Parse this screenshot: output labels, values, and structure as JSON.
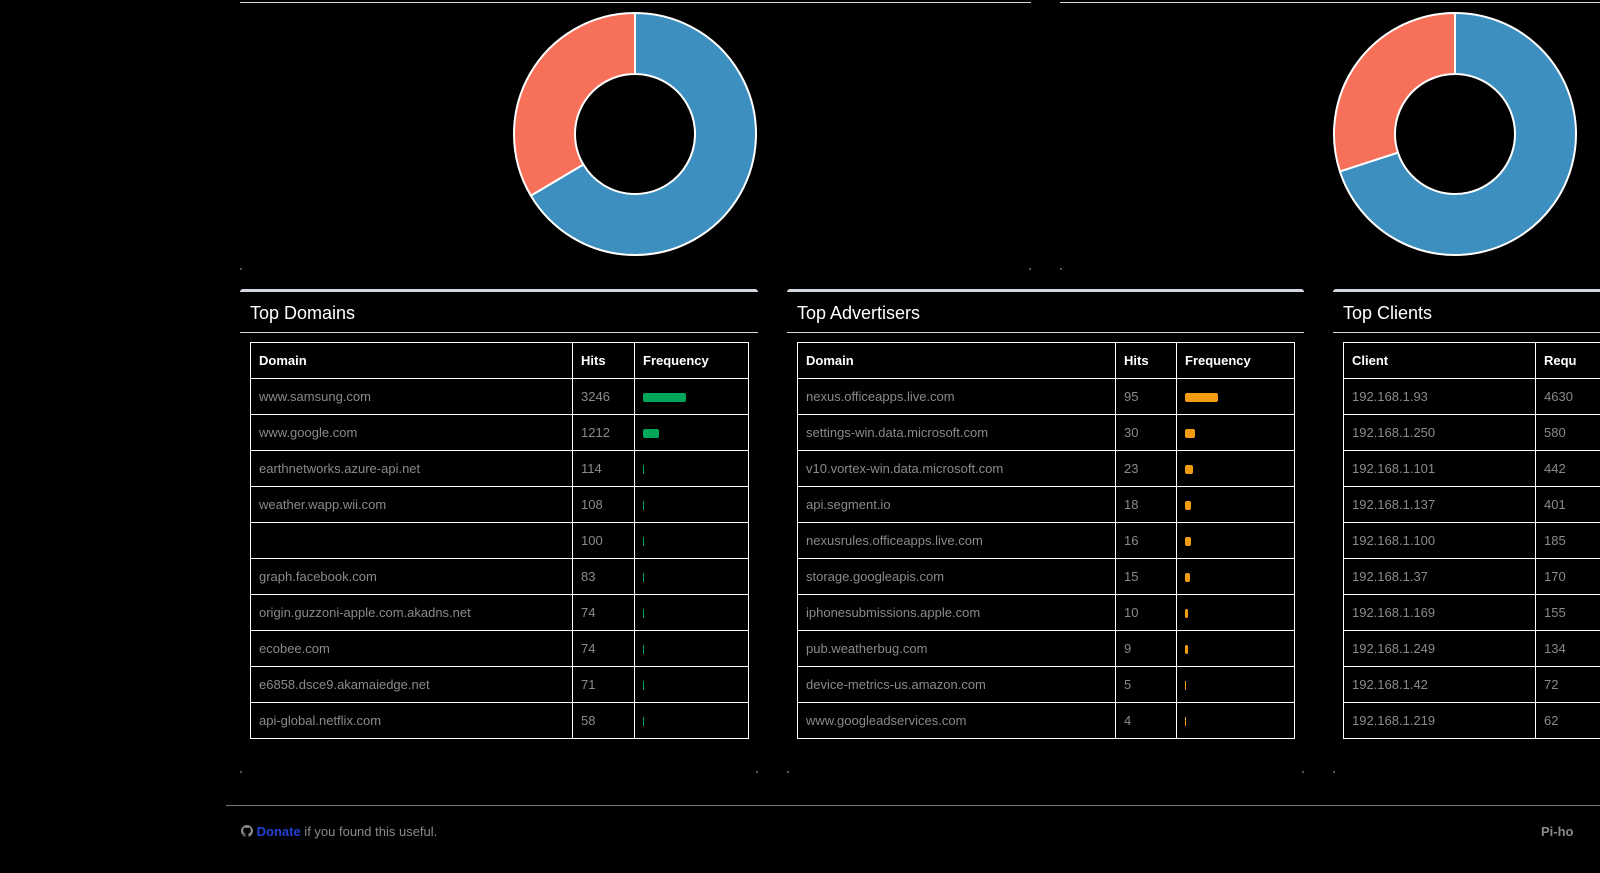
{
  "colors": {
    "pie_blue": "#3d8fbf",
    "pie_red": "#f7705a",
    "domains_bar": "#00a65a",
    "advertisers_bar": "#f39c12",
    "link": "#2441d6"
  },
  "charts": {
    "left_donut": {
      "slices": [
        {
          "value": 0.665,
          "color": "#3d8fbf"
        },
        {
          "value": 0.335,
          "color": "#f7705a"
        }
      ]
    },
    "right_donut": {
      "slices": [
        {
          "value": 0.7,
          "color": "#3d8fbf"
        },
        {
          "value": 0.3,
          "color": "#f7705a"
        }
      ]
    }
  },
  "top_domains": {
    "title": "Top Domains",
    "headers": [
      "Domain",
      "Hits",
      "Frequency"
    ],
    "rows": [
      {
        "domain": "www.samsung.com",
        "hits": "3246",
        "freq": 0.38
      },
      {
        "domain": "www.google.com",
        "hits": "1212",
        "freq": 0.14
      },
      {
        "domain": "earthnetworks.azure-api.net",
        "hits": "114",
        "freq": 0.013
      },
      {
        "domain": "weather.wapp.wii.com",
        "hits": "108",
        "freq": 0.012
      },
      {
        "domain": "",
        "hits": "100",
        "freq": 0.012
      },
      {
        "domain": "graph.facebook.com",
        "hits": "83",
        "freq": 0.01
      },
      {
        "domain": "origin.guzzoni-apple.com.akadns.net",
        "hits": "74",
        "freq": 0.009
      },
      {
        "domain": "ecobee.com",
        "hits": "74",
        "freq": 0.009
      },
      {
        "domain": "e6858.dsce9.akamaiedge.net",
        "hits": "71",
        "freq": 0.008
      },
      {
        "domain": "api-global.netflix.com",
        "hits": "58",
        "freq": 0.007
      }
    ]
  },
  "top_advertisers": {
    "title": "Top Advertisers",
    "headers": [
      "Domain",
      "Hits",
      "Frequency"
    ],
    "rows": [
      {
        "domain": "nexus.officeapps.live.com",
        "hits": "95",
        "freq": 0.29
      },
      {
        "domain": "settings-win.data.microsoft.com",
        "hits": "30",
        "freq": 0.09
      },
      {
        "domain": "v10.vortex-win.data.microsoft.com",
        "hits": "23",
        "freq": 0.07
      },
      {
        "domain": "api.segment.io",
        "hits": "18",
        "freq": 0.055
      },
      {
        "domain": "nexusrules.officeapps.live.com",
        "hits": "16",
        "freq": 0.049
      },
      {
        "domain": "storage.googleapis.com",
        "hits": "15",
        "freq": 0.046
      },
      {
        "domain": "iphonesubmissions.apple.com",
        "hits": "10",
        "freq": 0.03
      },
      {
        "domain": "pub.weatherbug.com",
        "hits": "9",
        "freq": 0.027
      },
      {
        "domain": "device-metrics-us.amazon.com",
        "hits": "5",
        "freq": 0.015
      },
      {
        "domain": "www.googleadservices.com",
        "hits": "4",
        "freq": 0.012
      }
    ]
  },
  "top_clients": {
    "title": "Top Clients",
    "headers": [
      "Client",
      "Requ"
    ],
    "rows": [
      {
        "client": "192.168.1.93",
        "requests": "4630"
      },
      {
        "client": "192.168.1.250",
        "requests": "580"
      },
      {
        "client": "192.168.1.101",
        "requests": "442"
      },
      {
        "client": "192.168.1.137",
        "requests": "401"
      },
      {
        "client": "192.168.1.100",
        "requests": "185"
      },
      {
        "client": "192.168.1.37",
        "requests": "170"
      },
      {
        "client": "192.168.1.169",
        "requests": "155"
      },
      {
        "client": "192.168.1.249",
        "requests": "134"
      },
      {
        "client": "192.168.1.42",
        "requests": "72"
      },
      {
        "client": "192.168.1.219",
        "requests": "62"
      }
    ]
  },
  "footer": {
    "github_icon": "github-icon",
    "donate_label": "Donate",
    "donate_suffix": " if you found this useful.",
    "right_text": "Pi-ho"
  }
}
